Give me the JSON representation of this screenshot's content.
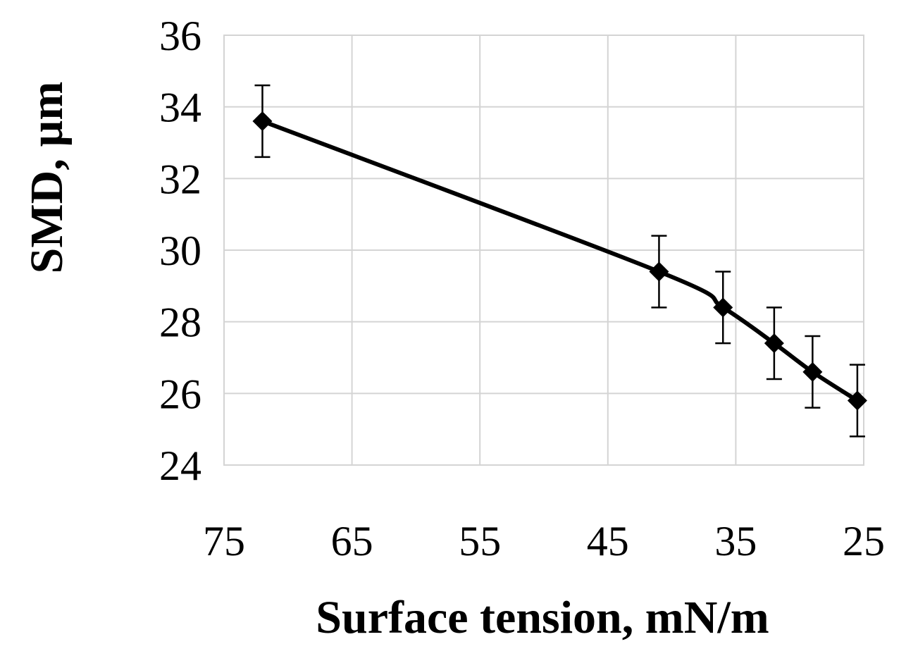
{
  "chart_data": {
    "type": "scatter",
    "xlabel": "Surface tension, mN/m",
    "ylabel": "SMD, µm",
    "xlim": [
      75,
      25
    ],
    "ylim": [
      24,
      36
    ],
    "x_reversed": true,
    "x_ticks": [
      "75",
      "65",
      "55",
      "45",
      "35",
      "25"
    ],
    "x_tick_values": [
      75,
      65,
      55,
      45,
      35,
      25
    ],
    "y_ticks": [
      "24",
      "26",
      "28",
      "30",
      "32",
      "34",
      "36"
    ],
    "y_tick_values": [
      24,
      26,
      28,
      30,
      32,
      34,
      36
    ],
    "grid": true,
    "marker": "diamond",
    "line": "smooth",
    "series": [
      {
        "x": [
          72,
          41,
          36,
          32,
          29,
          25.5
        ],
        "y": [
          33.6,
          29.4,
          28.4,
          27.4,
          26.6,
          25.8
        ],
        "error": [
          1.0,
          1.0,
          1.0,
          1.0,
          1.0,
          1.0
        ]
      }
    ],
    "colors": {
      "series": "#000000",
      "grid": "#d4d4d4",
      "text": "#000000"
    }
  }
}
